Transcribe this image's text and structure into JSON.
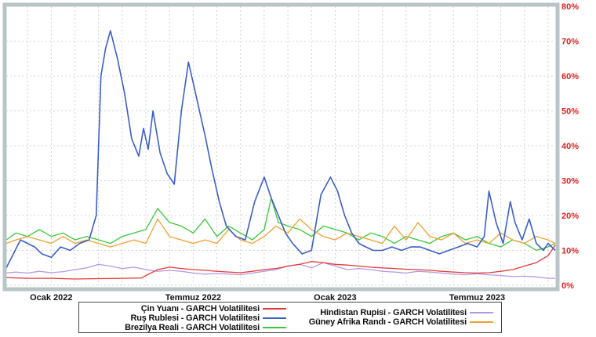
{
  "chart_data": {
    "type": "line",
    "xlabel": "",
    "ylabel": "",
    "x_ticks": [
      "Ocak 2022",
      "Temmuz 2022",
      "Ocak 2023",
      "Temmuz 2023"
    ],
    "x_ticks_months": [
      0,
      6,
      12,
      18
    ],
    "x_range_months": [
      -1.9,
      21.3
    ],
    "ylim": [
      0,
      80
    ],
    "y_ticks": [
      "0%",
      "10%",
      "20%",
      "30%",
      "40%",
      "50%",
      "60%",
      "70%",
      "80%"
    ],
    "grid": true,
    "y_axis_side": "right",
    "legend_position": "bottom",
    "series": [
      {
        "name": "Çin Yuanı - GARCH Volatilitesi",
        "color": "#e63a3a",
        "x": [
          -1.9,
          -1.0,
          0,
          1,
          2,
          3,
          3.8,
          4.5,
          5,
          5.5,
          6,
          6.5,
          7,
          7.5,
          8,
          8.5,
          9,
          9.5,
          10,
          10.5,
          11,
          11.5,
          12,
          12.5,
          13,
          13.5,
          14,
          14.5,
          15,
          15.5,
          16,
          16.5,
          17,
          17.5,
          18,
          18.5,
          19,
          19.5,
          20,
          20.5,
          21,
          21.3
        ],
        "y": [
          2.2,
          2.0,
          2.0,
          1.8,
          1.9,
          2.0,
          2.1,
          4.5,
          5.2,
          4.8,
          4.5,
          4.3,
          4.0,
          3.8,
          3.6,
          4.0,
          4.5,
          4.8,
          5.5,
          6.0,
          6.8,
          6.5,
          6.0,
          5.8,
          5.5,
          5.2,
          5.0,
          4.8,
          4.6,
          4.5,
          4.3,
          4.0,
          3.8,
          3.6,
          3.5,
          3.6,
          4.0,
          4.5,
          5.5,
          6.5,
          8.5,
          11.5
        ]
      },
      {
        "name": "Ruş Rublesi - GARCH Volatilitesi",
        "color": "#3a5fc8",
        "x": [
          -1.9,
          -1.6,
          -1.3,
          -1.0,
          -0.7,
          -0.4,
          0,
          0.4,
          0.8,
          1.2,
          1.6,
          1.9,
          2.1,
          2.3,
          2.5,
          2.8,
          3.1,
          3.4,
          3.7,
          3.9,
          4.1,
          4.3,
          4.6,
          4.9,
          5.2,
          5.5,
          5.8,
          6.0,
          6.2,
          6.5,
          6.8,
          7.1,
          7.4,
          7.8,
          8.2,
          8.6,
          9.0,
          9.3,
          9.6,
          9.9,
          10.2,
          10.6,
          11.0,
          11.4,
          11.8,
          12.1,
          12.4,
          12.7,
          13.0,
          13.3,
          13.6,
          14.0,
          14.4,
          14.8,
          15.2,
          15.6,
          16.0,
          16.4,
          16.8,
          17.2,
          17.6,
          18.0,
          18.3,
          18.5,
          18.8,
          19.1,
          19.4,
          19.6,
          19.9,
          20.2,
          20.5,
          20.8,
          21.0,
          21.3
        ],
        "y": [
          5,
          9,
          13,
          12,
          11,
          9,
          8,
          11,
          10,
          12,
          13,
          20,
          60,
          68,
          73,
          65,
          55,
          42,
          37,
          45,
          39,
          50,
          38,
          32,
          29,
          50,
          64,
          58,
          52,
          43,
          33,
          24,
          17,
          14,
          13,
          24,
          31,
          25,
          20,
          15,
          12,
          9,
          10,
          26,
          31,
          27,
          20,
          15,
          12,
          11,
          10,
          10,
          11,
          10,
          11,
          11,
          10,
          9,
          10,
          11,
          12,
          11,
          14,
          27,
          18,
          12,
          24,
          18,
          13,
          19,
          12,
          10,
          12,
          10
        ]
      },
      {
        "name": "Brezilya Reali - GARCH Volatilitesi",
        "color": "#3ac83a",
        "x": [
          -1.9,
          -1.5,
          -1.0,
          -0.5,
          0,
          0.5,
          1,
          1.5,
          2,
          2.5,
          3,
          3.5,
          4,
          4.5,
          5,
          5.5,
          6,
          6.5,
          7,
          7.5,
          8,
          8.5,
          9,
          9.3,
          9.6,
          10,
          10.5,
          11,
          11.5,
          12,
          12.5,
          13,
          13.5,
          14,
          14.5,
          15,
          15.5,
          16,
          16.5,
          17,
          17.5,
          18,
          18.5,
          19,
          19.5,
          20,
          20.5,
          21,
          21.3
        ],
        "y": [
          13,
          15,
          14,
          16,
          14,
          15,
          13,
          14,
          13,
          12,
          14,
          15,
          16,
          22,
          18,
          17,
          15,
          19,
          14,
          17,
          15,
          13,
          16,
          25,
          18,
          17,
          16,
          14,
          17,
          16,
          15,
          13,
          15,
          14,
          12,
          14,
          13,
          12,
          14,
          15,
          13,
          14,
          12,
          11,
          13,
          12,
          10,
          11,
          12
        ]
      },
      {
        "name": "Hindistan Rupisi - GARCH Volatilitesi",
        "color": "#b59ae0",
        "x": [
          -1.9,
          -1.5,
          -1.0,
          -0.5,
          0,
          0.5,
          1,
          1.5,
          2,
          2.5,
          3,
          3.5,
          4,
          4.5,
          5,
          5.5,
          6,
          6.5,
          7,
          7.5,
          8,
          8.5,
          9,
          9.5,
          10,
          10.5,
          11,
          11.5,
          12,
          12.5,
          13,
          13.5,
          14,
          14.5,
          15,
          15.5,
          16,
          16.5,
          17,
          17.5,
          18,
          18.5,
          19,
          19.5,
          20,
          20.5,
          21,
          21.3
        ],
        "y": [
          3.5,
          3.8,
          3.5,
          4.0,
          3.6,
          3.9,
          4.5,
          5.0,
          6.0,
          5.5,
          4.8,
          5.2,
          4.5,
          4.0,
          4.3,
          4.0,
          3.5,
          3.2,
          3.4,
          3.2,
          3.0,
          3.5,
          4.0,
          4.5,
          5.5,
          6.0,
          5.0,
          6.5,
          5.5,
          4.5,
          4.8,
          4.5,
          4.0,
          3.8,
          3.5,
          4.0,
          3.8,
          3.5,
          3.2,
          3.0,
          3.3,
          3.0,
          2.8,
          2.5,
          2.6,
          2.4,
          2.0,
          2.0
        ]
      },
      {
        "name": "Güney Afrika Randı - GARCH Volatilitesi",
        "color": "#f0a030",
        "x": [
          -1.9,
          -1.5,
          -1.0,
          -0.5,
          0,
          0.5,
          1,
          1.5,
          2,
          2.5,
          3,
          3.5,
          4,
          4.5,
          5,
          5.5,
          6,
          6.5,
          7,
          7.5,
          8,
          8.5,
          9,
          9.5,
          10,
          10.5,
          11,
          11.5,
          12,
          12.5,
          13,
          13.5,
          14,
          14.5,
          15,
          15.5,
          16,
          16.5,
          17,
          17.5,
          18,
          18.5,
          19,
          19.5,
          20,
          20.5,
          21,
          21.3
        ],
        "y": [
          12,
          13,
          14,
          13,
          12,
          14,
          12,
          13,
          12,
          11,
          12,
          13,
          12,
          19,
          14,
          13,
          12,
          13,
          12,
          16,
          13,
          12,
          14,
          17,
          15,
          19,
          16,
          14,
          13,
          15,
          14,
          13,
          12,
          17,
          13,
          18,
          14,
          13,
          15,
          12,
          13,
          12,
          15,
          13,
          12,
          14,
          13,
          12
        ]
      }
    ]
  },
  "legend": {
    "left_items": [
      {
        "name": "Çin Yuanı - GARCH Volatilitesi",
        "color": "#e63a3a"
      },
      {
        "name": "Ruş Rublesi - GARCH Volatilitesi",
        "color": "#3a5fc8"
      },
      {
        "name": "Brezilya Reali - GARCH Volatilitesi",
        "color": "#3ac83a"
      }
    ],
    "right_items": [
      {
        "name": "Hindistan Rupisi - GARCH Volatilitesi",
        "color": "#b59ae0"
      },
      {
        "name": "Güney Afrika Randı - GARCH Volatilitesi",
        "color": "#f0a030"
      }
    ]
  },
  "colors": {
    "frame": "#b8c4c6",
    "grid": "#c8c8c8",
    "y_tick_text": "#e02020",
    "x_tick_text": "#111111"
  }
}
